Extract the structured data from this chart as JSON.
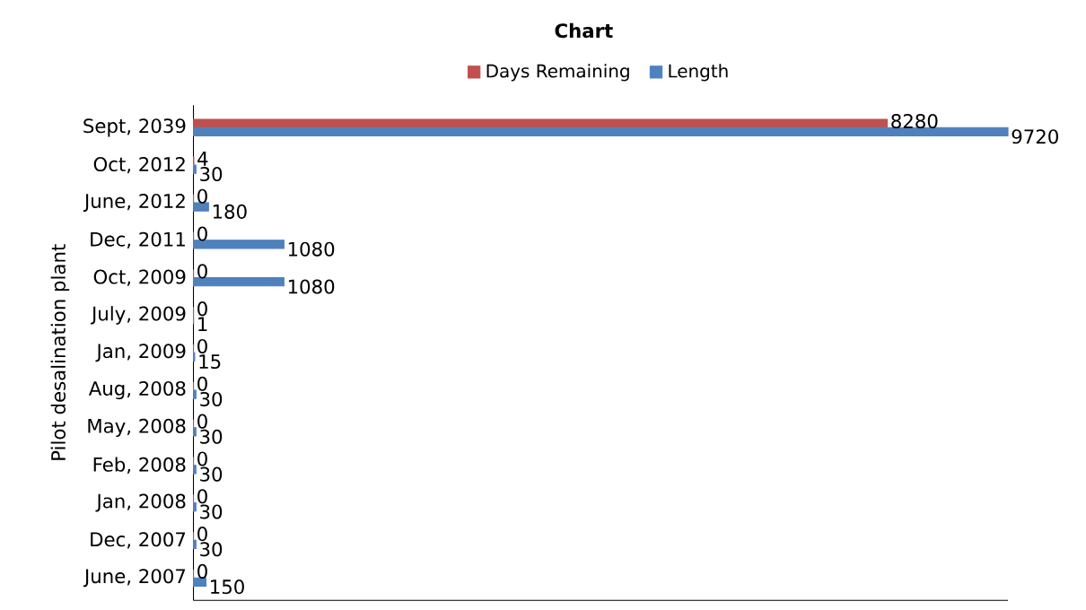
{
  "chart_data": {
    "type": "bar",
    "orientation": "horizontal",
    "title": "Chart",
    "ylabel": "Pilot desalination plant",
    "categories": [
      "Sept, 2039",
      "Oct, 2012",
      "June, 2012",
      "Dec, 2011",
      "Oct, 2009",
      "July, 2009",
      "Jan, 2009",
      "Aug, 2008",
      "May, 2008",
      "Feb, 2008",
      "Jan, 2008",
      "Dec, 2007",
      "June, 2007"
    ],
    "series": [
      {
        "name": "Days Remaining",
        "color": "#c0504d",
        "values": [
          8280,
          4,
          0,
          0,
          0,
          0,
          0,
          0,
          0,
          0,
          0,
          0,
          0
        ]
      },
      {
        "name": "Length",
        "color": "#4f81bd",
        "values": [
          9720,
          30,
          180,
          1080,
          1080,
          1,
          15,
          30,
          30,
          30,
          30,
          30,
          150
        ]
      }
    ],
    "data_labels": true,
    "legend": "top"
  }
}
